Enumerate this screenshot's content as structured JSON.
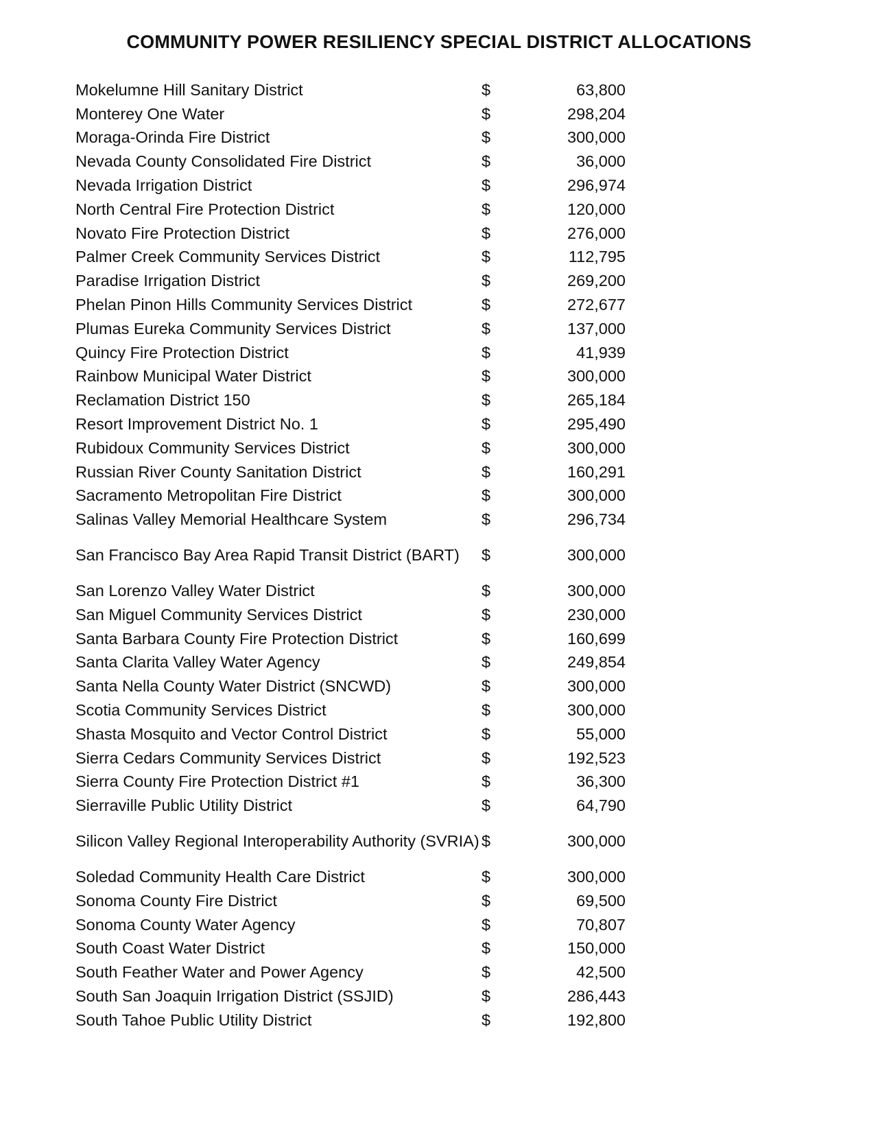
{
  "title": "COMMUNITY POWER RESILIENCY SPECIAL DISTRICT ALLOCATIONS",
  "currency_symbol": "$",
  "rows": [
    {
      "name": "Mokelumne Hill Sanitary District",
      "amount": "63,800"
    },
    {
      "name": "Monterey One Water",
      "amount": "298,204"
    },
    {
      "name": "Moraga-Orinda Fire District",
      "amount": "300,000"
    },
    {
      "name": "Nevada County Consolidated Fire District",
      "amount": "36,000"
    },
    {
      "name": "Nevada Irrigation District",
      "amount": "296,974"
    },
    {
      "name": "North Central Fire Protection District",
      "amount": "120,000"
    },
    {
      "name": "Novato Fire Protection District",
      "amount": "276,000"
    },
    {
      "name": "Palmer Creek Community Services District",
      "amount": "112,795"
    },
    {
      "name": "Paradise Irrigation District",
      "amount": "269,200"
    },
    {
      "name": "Phelan Pinon Hills Community Services District",
      "amount": "272,677"
    },
    {
      "name": "Plumas Eureka Community Services District",
      "amount": "137,000"
    },
    {
      "name": "Quincy Fire Protection District",
      "amount": "41,939"
    },
    {
      "name": "Rainbow Municipal Water District",
      "amount": "300,000"
    },
    {
      "name": "Reclamation District 150",
      "amount": "265,184"
    },
    {
      "name": "Resort Improvement District No. 1",
      "amount": "295,490"
    },
    {
      "name": "Rubidoux Community Services District",
      "amount": "300,000"
    },
    {
      "name": "Russian River County Sanitation District",
      "amount": "160,291"
    },
    {
      "name": "Sacramento Metropolitan Fire District",
      "amount": "300,000"
    },
    {
      "name": "Salinas Valley Memorial Healthcare System",
      "amount": "296,734"
    },
    {
      "name": "San Francisco Bay Area Rapid Transit District (BART)",
      "amount": "300,000"
    },
    {
      "name": "San Lorenzo Valley Water District",
      "amount": "300,000"
    },
    {
      "name": "San Miguel Community Services District",
      "amount": "230,000"
    },
    {
      "name": "Santa Barbara County Fire Protection District",
      "amount": "160,699"
    },
    {
      "name": "Santa Clarita Valley Water Agency",
      "amount": "249,854"
    },
    {
      "name": "Santa Nella County Water District (SNCWD)",
      "amount": "300,000"
    },
    {
      "name": "Scotia Community Services District",
      "amount": "300,000"
    },
    {
      "name": "Shasta Mosquito and Vector Control District",
      "amount": "55,000"
    },
    {
      "name": "Sierra Cedars Community Services District",
      "amount": "192,523"
    },
    {
      "name": "Sierra County Fire Protection District #1",
      "amount": "36,300"
    },
    {
      "name": "Sierraville Public Utility District",
      "amount": "64,790"
    },
    {
      "name": "Silicon Valley Regional Interoperability Authority (SVRIA)",
      "amount": "300,000"
    },
    {
      "name": "Soledad Community Health Care District",
      "amount": "300,000"
    },
    {
      "name": "Sonoma County Fire District",
      "amount": "69,500"
    },
    {
      "name": "Sonoma County Water Agency",
      "amount": "70,807"
    },
    {
      "name": "South Coast Water District",
      "amount": "150,000"
    },
    {
      "name": "South Feather Water and Power Agency",
      "amount": "42,500"
    },
    {
      "name": "South San Joaquin Irrigation District (SSJID)",
      "amount": "286,443"
    },
    {
      "name": "South Tahoe Public Utility District",
      "amount": "192,800"
    }
  ]
}
